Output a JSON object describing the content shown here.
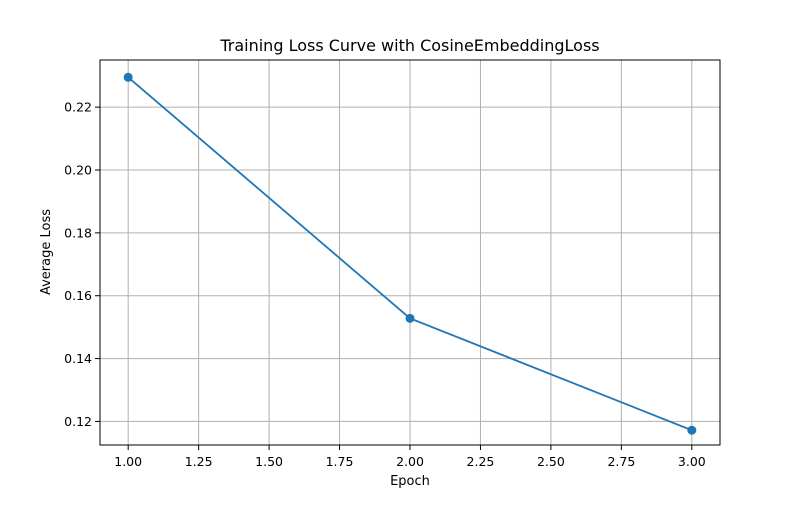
{
  "chart_data": {
    "type": "line",
    "title": "Training Loss Curve with CosineEmbeddingLoss",
    "xlabel": "Epoch",
    "ylabel": "Average Loss",
    "xlim": [
      0.9,
      3.1
    ],
    "ylim": [
      0.1125,
      0.235
    ],
    "xticks": [
      1.0,
      1.25,
      1.5,
      1.75,
      2.0,
      2.25,
      2.5,
      2.75,
      3.0
    ],
    "xtick_labels": [
      "1.00",
      "1.25",
      "1.50",
      "1.75",
      "2.00",
      "2.25",
      "2.50",
      "2.75",
      "3.00"
    ],
    "yticks": [
      0.12,
      0.14,
      0.16,
      0.18,
      0.2,
      0.22
    ],
    "ytick_labels": [
      "0.12",
      "0.14",
      "0.16",
      "0.18",
      "0.20",
      "0.22"
    ],
    "grid": true,
    "series": [
      {
        "color": "#1f77b4",
        "marker": "circle",
        "x": [
          1,
          2,
          3
        ],
        "y": [
          0.2295,
          0.1528,
          0.1172
        ]
      }
    ]
  }
}
